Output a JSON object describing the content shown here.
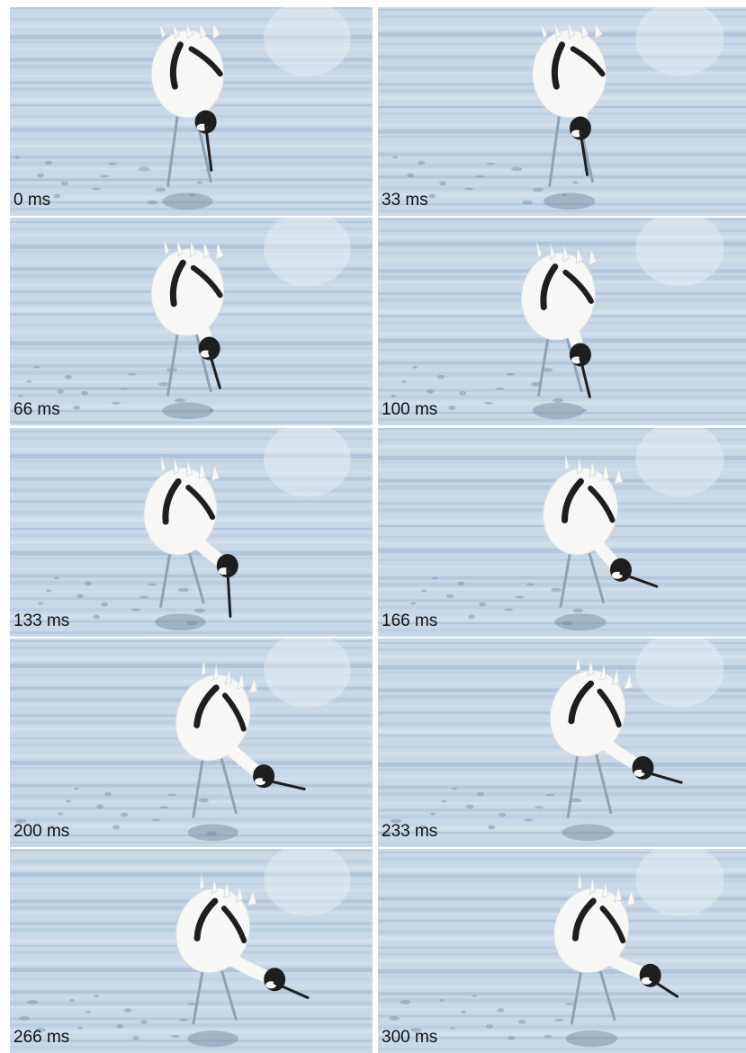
{
  "frames": [
    {
      "time_label": "0 ms"
    },
    {
      "time_label": "33 ms"
    },
    {
      "time_label": "66 ms"
    },
    {
      "time_label": "100 ms"
    },
    {
      "time_label": "133 ms"
    },
    {
      "time_label": "166 ms"
    },
    {
      "time_label": "200 ms"
    },
    {
      "time_label": "233 ms"
    },
    {
      "time_label": "266 ms"
    },
    {
      "time_label": "300 ms"
    }
  ],
  "colors": {
    "water_light": "#c9d8e6",
    "water_mid": "#a9bfd5",
    "water_dark": "#7f98b0",
    "bird_white": "#f7f7f5",
    "bird_black": "#1e1e1e",
    "leg": "#8ea2b4"
  },
  "subject": "pied avocet feeding sequence"
}
